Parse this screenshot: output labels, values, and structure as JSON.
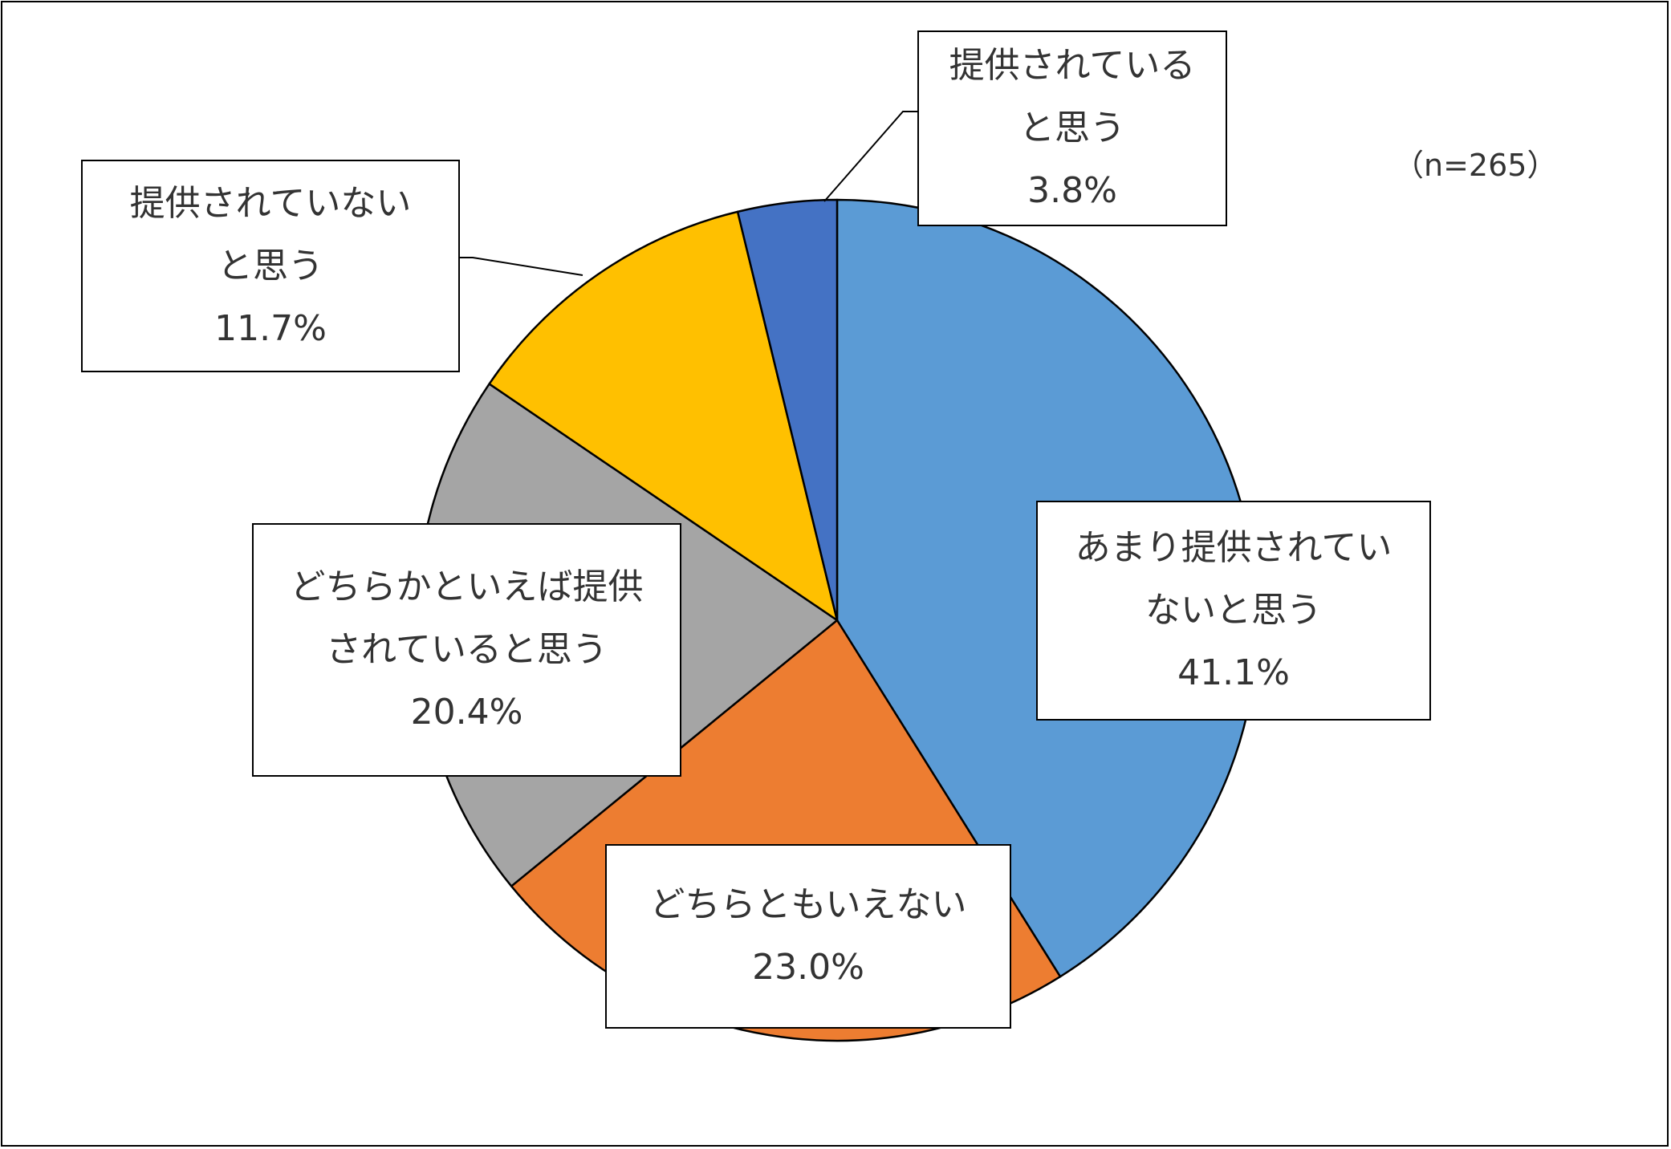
{
  "chart_data": {
    "type": "pie",
    "note": "（n=265）",
    "start_angle_deg": 0,
    "direction": "clockwise",
    "slices": [
      {
        "label_lines": [
          "あまり提供されてい",
          "ないと思う"
        ],
        "value_text": "41.1%",
        "value": 41.1,
        "color": "#5B9BD5"
      },
      {
        "label_lines": [
          "どちらともいえない"
        ],
        "value_text": "23.0%",
        "value": 23.0,
        "color": "#ED7D31"
      },
      {
        "label_lines": [
          "どちらかといえば提供",
          "されていると思う"
        ],
        "value_text": "20.4%",
        "value": 20.4,
        "color": "#A5A5A5"
      },
      {
        "label_lines": [
          "提供されていない",
          "と思う"
        ],
        "value_text": "11.7%",
        "value": 11.7,
        "color": "#FFC000"
      },
      {
        "label_lines": [
          "提供されている",
          "と思う"
        ],
        "value_text": "3.8%",
        "value": 3.8,
        "color": "#4472C4"
      }
    ]
  }
}
